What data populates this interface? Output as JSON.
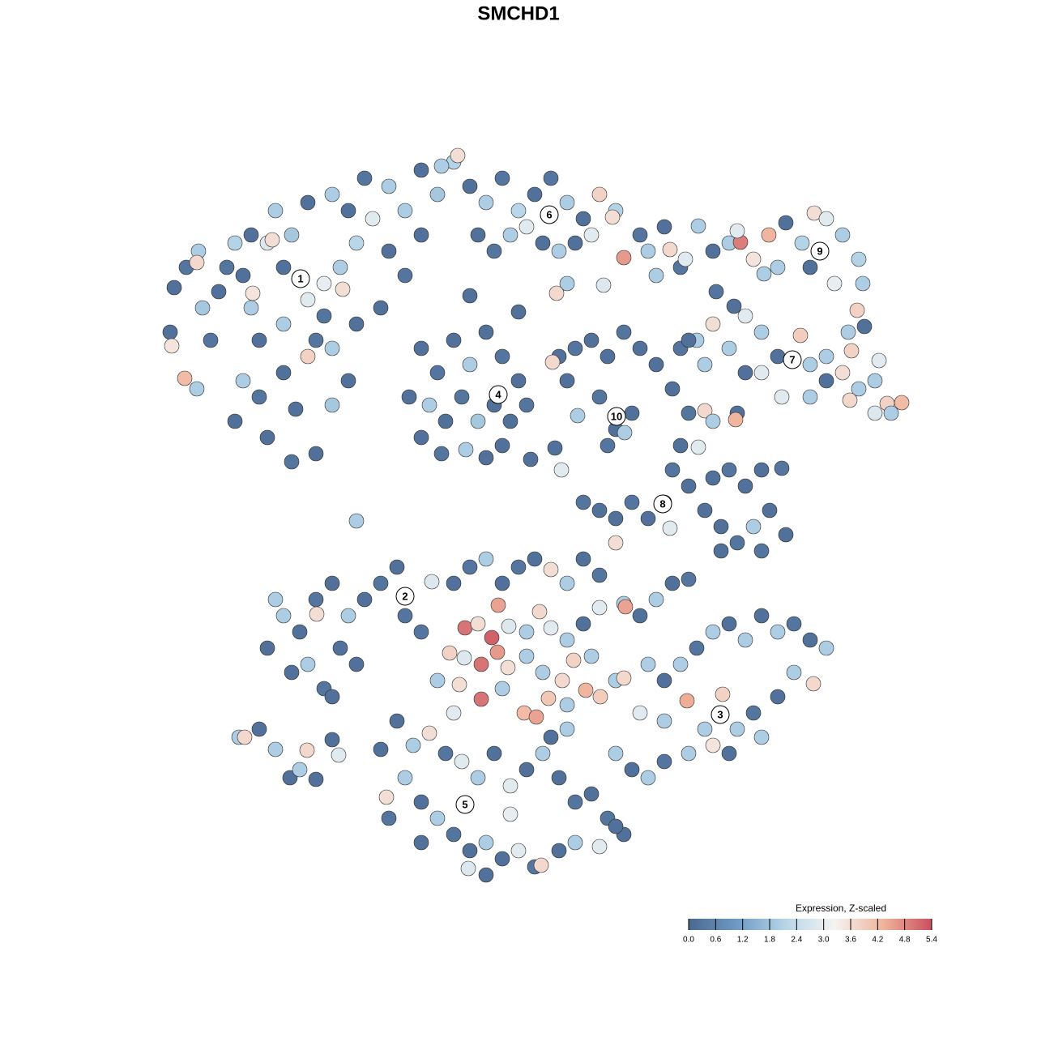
{
  "chart_data": {
    "type": "scatter",
    "title": "SMCHD1",
    "xlim": [
      0,
      1280
    ],
    "ylim": [
      1280,
      0
    ],
    "x": [
      215,
      230,
      210,
      245,
      250,
      270,
      260,
      290,
      300,
      310,
      320,
      330,
      340,
      350,
      360,
      380,
      390,
      400,
      420,
      440,
      460,
      480,
      500,
      520,
      540,
      560,
      500,
      470,
      440,
      410,
      380,
      350,
      320,
      300,
      290,
      330,
      360,
      390,
      410,
      430,
      228,
      212,
      243,
      312,
      423,
      243,
      336,
      310,
      280,
      350,
      380,
      410,
      430,
      450,
      480,
      520,
      545,
      565,
      400,
      365,
      580,
      600,
      620,
      640,
      660,
      680,
      700,
      720,
      740,
      760,
      590,
      610,
      630,
      650,
      670,
      690,
      710,
      730,
      756,
      770,
      790,
      800,
      820,
      827,
      810,
      840,
      846,
      745,
      700,
      687,
      520,
      540,
      560,
      580,
      600,
      620,
      640,
      530,
      550,
      570,
      590,
      610,
      630,
      650,
      520,
      545,
      575,
      600,
      620,
      505,
      690,
      710,
      730,
      750,
      770,
      790,
      810,
      740,
      760,
      780,
      750,
      771,
      682,
      713,
      700,
      655,
      685,
      693,
      640,
      580,
      880,
      900,
      914,
      930,
      949,
      960,
      990,
      1005,
      1020,
      1040,
      1060,
      1065,
      1030,
      1058,
      1000,
      970,
      943,
      910,
      862,
      1067,
      840,
      860,
      880,
      900,
      920,
      940,
      960,
      988,
      1000,
      1020,
      1040,
      1051,
      1060,
      1080,
      1095,
      1113,
      1085,
      1047,
      940,
      965,
      1000,
      1049,
      1080,
      920,
      870,
      850,
      1100,
      1020,
      906,
      884,
      830,
      850,
      870,
      880,
      910,
      908,
      840,
      862,
      830,
      850,
      880,
      900,
      920,
      940,
      965,
      870,
      890,
      910,
      930,
      950,
      970,
      940,
      890,
      820,
      800,
      780,
      760,
      740,
      720,
      827,
      330,
      350,
      370,
      390,
      410,
      430,
      450,
      470,
      490,
      500,
      360,
      380,
      400,
      420,
      440,
      340,
      391,
      520,
      533,
      410,
      295,
      302,
      320,
      340,
      358,
      379,
      370,
      390,
      410,
      418,
      560,
      580,
      600,
      620,
      640,
      660,
      680,
      700,
      720,
      740,
      574,
      590,
      607,
      615,
      628,
      650,
      666,
      680,
      700,
      720,
      555,
      573,
      594,
      614,
      627,
      650,
      670,
      694,
      708,
      730,
      594,
      620,
      647,
      662,
      677,
      700,
      723,
      741,
      760,
      770,
      770,
      790,
      810,
      830,
      850,
      772,
      760,
      740,
      540,
      567,
      800,
      820,
      840,
      860,
      880,
      900,
      920,
      940,
      960,
      980,
      1000,
      1020,
      1004,
      980,
      960,
      930,
      910,
      892,
      848,
      870,
      850,
      820,
      800,
      780,
      760,
      790,
      820,
      900,
      940,
      880,
      490,
      510,
      530,
      550,
      570,
      590,
      610,
      630,
      650,
      670,
      690,
      710,
      730,
      750,
      770,
      500,
      520,
      540,
      560,
      580,
      600,
      620,
      640,
      660,
      668,
      690,
      710,
      578,
      600,
      477,
      740,
      760,
      700,
      680,
      630,
      560,
      470,
      480,
      520,
      440
    ],
    "y": [
      355,
      330,
      410,
      310,
      380,
      360,
      420,
      300,
      340,
      380,
      420,
      300,
      260,
      330,
      290,
      370,
      420,
      350,
      330,
      300,
      270,
      310,
      260,
      290,
      240,
      200,
      340,
      380,
      400,
      430,
      440,
      460,
      490,
      470,
      520,
      540,
      570,
      560,
      500,
      470,
      467,
      427,
      480,
      362,
      357,
      324,
      296,
      290,
      330,
      400,
      250,
      240,
      260,
      220,
      230,
      210,
      205,
      192,
      390,
      505,
      230,
      250,
      220,
      260,
      240,
      220,
      250,
      270,
      240,
      260,
      290,
      310,
      290,
      280,
      300,
      310,
      300,
      290,
      268,
      318,
      290,
      310,
      280,
      308,
      340,
      330,
      320,
      352,
      350,
      362,
      430,
      460,
      420,
      450,
      410,
      440,
      470,
      500,
      520,
      490,
      520,
      500,
      520,
      500,
      540,
      560,
      555,
      565,
      550,
      490,
      440,
      430,
      420,
      440,
      410,
      430,
      450,
      490,
      530,
      510,
      550,
      534,
      447,
      513,
      470,
      567,
      553,
      580,
      385,
      365,
      310,
      300,
      299,
      320,
      290,
      330,
      300,
      263,
      270,
      290,
      320,
      350,
      350,
      383,
      330,
      275,
      338,
      285,
      279,
      403,
      430,
      420,
      400,
      430,
      390,
      410,
      440,
      414,
      450,
      470,
      460,
      433,
      480,
      470,
      498,
      497,
      445,
      410,
      460,
      490,
      490,
      494,
      510,
      460,
      450,
      420,
      510,
      440,
      378,
      360,
      480,
      510,
      507,
      520,
      510,
      518,
      550,
      552,
      580,
      600,
      590,
      580,
      600,
      580,
      578,
      630,
      650,
      670,
      650,
      630,
      660,
      680,
      680,
      620,
      640,
      620,
      640,
      630,
      620,
      652,
      800,
      760,
      780,
      740,
      720,
      760,
      740,
      720,
      700,
      760,
      830,
      820,
      850,
      800,
      820,
      740,
      758,
      780,
      718,
      860,
      910,
      910,
      900,
      925,
      960,
      926,
      950,
      962,
      913,
      932,
      720,
      700,
      690,
      720,
      700,
      690,
      703,
      720,
      690,
      710,
      775,
      770,
      787,
      747,
      773,
      780,
      755,
      775,
      790,
      770,
      806,
      812,
      820,
      805,
      824,
      810,
      830,
      840,
      815,
      810,
      863,
      850,
      880,
      885,
      862,
      870,
      852,
      860,
      840,
      837,
      745,
      760,
      740,
      720,
      715,
      749,
      670,
      750,
      840,
      845,
      820,
      840,
      820,
      800,
      780,
      770,
      790,
      760,
      780,
      770,
      790,
      800,
      844,
      830,
      860,
      880,
      900,
      857,
      865,
      900,
      930,
      940,
      960,
      950,
      930,
      880,
      890,
      930,
      910,
      920,
      890,
      920,
      905,
      930,
      940,
      960,
      930,
      970,
      950,
      930,
      960,
      990,
      980,
      1010,
      1030,
      960,
      990,
      1010,
      1030,
      1050,
      1040,
      1060,
      1050,
      1070,
      1068,
      1050,
      1040,
      1072,
      1080,
      984,
      1045,
      1020,
      900,
      910,
      1005,
      880,
      925,
      1010,
      1040,
      643
    ],
    "values": [
      0.2,
      0.3,
      0.2,
      2.0,
      1.9,
      0.2,
      0.3,
      2.1,
      0.2,
      2.0,
      0.2,
      2.8,
      2.0,
      0.2,
      1.9,
      2.9,
      0.3,
      3.0,
      2.0,
      2.2,
      2.9,
      0.2,
      2.0,
      0.2,
      1.9,
      2.1,
      0.3,
      0.2,
      0.2,
      2.0,
      3.8,
      0.2,
      0.3,
      2.0,
      0.2,
      0.2,
      0.3,
      0.2,
      1.9,
      0.2,
      4.2,
      3.5,
      2.0,
      3.5,
      3.6,
      3.7,
      3.6,
      0.2,
      0.3,
      2.0,
      0.2,
      2.0,
      0.2,
      0.3,
      2.0,
      0.2,
      2.0,
      3.6,
      0.3,
      0.2,
      0.2,
      2.0,
      0.3,
      2.2,
      0.2,
      0.3,
      2.0,
      0.2,
      3.8,
      2.1,
      0.2,
      0.3,
      2.0,
      2.9,
      0.2,
      2.0,
      0.2,
      2.9,
      3.6,
      4.6,
      0.3,
      2.0,
      0.2,
      3.7,
      2.0,
      0.3,
      2.9,
      2.8,
      2.0,
      3.7,
      0.2,
      0.3,
      0.2,
      2.0,
      0.2,
      0.3,
      0.2,
      2.0,
      0.2,
      0.3,
      1.9,
      0.2,
      0.2,
      0.3,
      0.2,
      0.3,
      2.0,
      0.2,
      0.2,
      0.2,
      0.2,
      0.3,
      0.2,
      0.2,
      0.3,
      0.2,
      0.2,
      0.3,
      0.2,
      0.2,
      0.3,
      2.0,
      3.7,
      2.0,
      0.2,
      0.2,
      0.2,
      2.9,
      0.2,
      0.2,
      0.2,
      2.0,
      4.9,
      3.5,
      4.3,
      2.0,
      2.1,
      3.6,
      2.9,
      2.0,
      2.1,
      2.0,
      3.0,
      3.8,
      0.2,
      0.2,
      2.0,
      2.9,
      2.0,
      0.2,
      0.3,
      2.0,
      3.6,
      2.0,
      2.9,
      2.0,
      0.2,
      3.9,
      2.0,
      0.2,
      3.6,
      3.8,
      2.0,
      2.0,
      3.8,
      4.2,
      2.9,
      2.0,
      2.9,
      2.9,
      2.0,
      3.7,
      2.8,
      0.2,
      2.0,
      0.2,
      2.0,
      2.0,
      0.2,
      0.3,
      0.2,
      0.3,
      3.7,
      2.0,
      0.2,
      4.3,
      0.2,
      2.9,
      0.3,
      0.2,
      0.2,
      0.3,
      0.2,
      0.2,
      0.3,
      0.2,
      0.2,
      0.3,
      2.0,
      0.2,
      0.2,
      0.3,
      0.2,
      0.2,
      0.2,
      0.3,
      0.2,
      0.2,
      0.3,
      2.9,
      0.2,
      2.0,
      0.2,
      0.3,
      0.2,
      2.0,
      0.2,
      0.3,
      0.2,
      0.3,
      0.2,
      2.0,
      0.3,
      0.2,
      0.2,
      2.0,
      3.6,
      0.3,
      2.8,
      0.2,
      2.0,
      3.7,
      0.2,
      2.0,
      0.2,
      3.7,
      2.0,
      0.2,
      0.2,
      2.9,
      0.2,
      0.3,
      2.0,
      0.2,
      0.3,
      0.2,
      3.6,
      2.0,
      0.2,
      0.3,
      5.0,
      3.6,
      5.2,
      4.5,
      2.8,
      2.0,
      3.7,
      2.9,
      2.0,
      0.2,
      3.8,
      2.8,
      5.0,
      4.6,
      3.6,
      2.0,
      2.0,
      3.7,
      3.8,
      2.0,
      5.0,
      2.0,
      4.2,
      4.5,
      4.0,
      2.0,
      4.3,
      3.9,
      2.0,
      3.7,
      2.0,
      0.2,
      2.0,
      0.2,
      0.3,
      4.5,
      3.6,
      2.9,
      2.0,
      3.6,
      2.0,
      0.2,
      2.0,
      0.3,
      2.0,
      0.2,
      2.0,
      0.2,
      2.0,
      0.3,
      0.2,
      2.0,
      3.7,
      2.0,
      0.2,
      0.3,
      2.0,
      3.8,
      4.4,
      2.0,
      2.0,
      0.3,
      2.0,
      0.2,
      2.0,
      2.9,
      2.0,
      0.2,
      2.0,
      3.5,
      0.2,
      2.0,
      3.6,
      0.3,
      2.9,
      2.0,
      0.2,
      2.9,
      0.2,
      2.0,
      0.2,
      0.3,
      0.2,
      0.3,
      0.2,
      2.0,
      0.2,
      2.0,
      0.3,
      0.2,
      2.0,
      0.2,
      2.9,
      0.3,
      3.7,
      0.2,
      2.0,
      2.8,
      0.2,
      3.6,
      2.9,
      0.2,
      2.0,
      0.2,
      3.0,
      2.9,
      0.2,
      0.3,
      0.2,
      2.0
    ],
    "annotations": [
      {
        "label": "1",
        "x": 371,
        "y": 344
      },
      {
        "label": "2",
        "x": 500,
        "y": 736
      },
      {
        "label": "3",
        "x": 889,
        "y": 882
      },
      {
        "label": "4",
        "x": 615,
        "y": 487
      },
      {
        "label": "5",
        "x": 574,
        "y": 993
      },
      {
        "label": "6",
        "x": 678,
        "y": 265
      },
      {
        "label": "7",
        "x": 978,
        "y": 444
      },
      {
        "label": "8",
        "x": 818,
        "y": 622
      },
      {
        "label": "9",
        "x": 1012,
        "y": 310
      },
      {
        "label": "10",
        "x": 761,
        "y": 514
      }
    ],
    "colorbar": {
      "title": "Expression, Z-scaled",
      "range": [
        0,
        5.4
      ],
      "colors": [
        "#4a6890",
        "#6f9ac4",
        "#b7d6e8",
        "#f5f3f2",
        "#f0b49c",
        "#c94f5f"
      ],
      "ticks": [
        {
          "value": 0,
          "label": "0.0"
        },
        {
          "value": 0.6,
          "label": "0.6"
        },
        {
          "value": 1.2,
          "label": "1.2"
        },
        {
          "value": 1.8,
          "label": "1.8"
        },
        {
          "value": 2.4,
          "label": "2.4"
        },
        {
          "value": 3.0,
          "label": "3.0"
        },
        {
          "value": 3.6,
          "label": "3.6"
        },
        {
          "value": 4.2,
          "label": "4.2"
        },
        {
          "value": 4.8,
          "label": "4.8"
        },
        {
          "value": 5.4,
          "label": "5.4"
        }
      ]
    }
  }
}
